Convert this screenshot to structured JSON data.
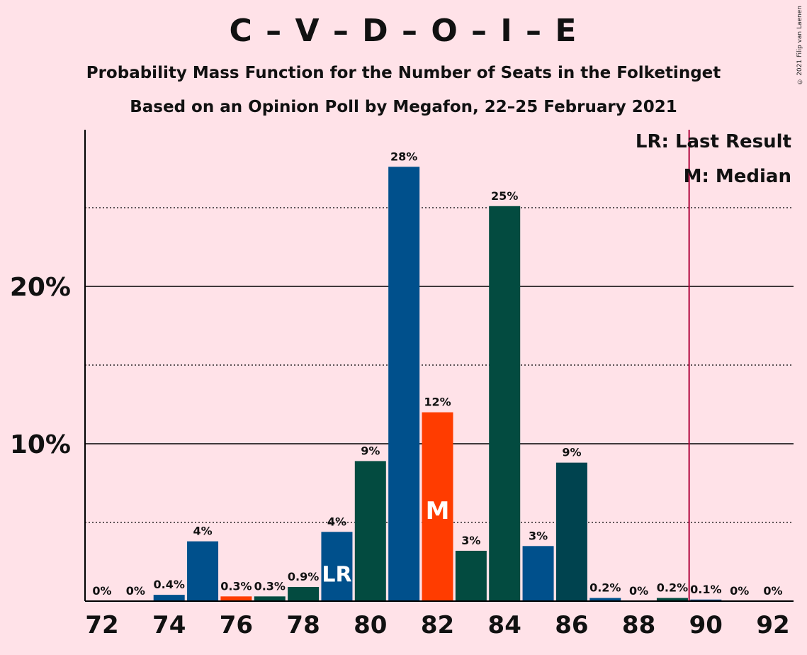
{
  "chart_data": {
    "type": "bar",
    "title": "C – V – D – O – I – E",
    "subtitles": [
      "Probability Mass Function for the Number of Seats in the Folketinget",
      "Based on an Opinion Poll by Megafon, 22–25 February 2021"
    ],
    "copyright": "© 2021 Filip van Laenen",
    "x": [
      72,
      73,
      74,
      75,
      76,
      77,
      78,
      79,
      80,
      81,
      82,
      83,
      84,
      85,
      86,
      87,
      88,
      89,
      90,
      91,
      92
    ],
    "values": [
      0,
      0,
      0.4,
      3.8,
      0.3,
      0.3,
      0.9,
      4.4,
      8.9,
      27.6,
      12.0,
      3.2,
      25.1,
      3.5,
      8.8,
      0.2,
      0,
      0.2,
      0.1,
      0,
      0
    ],
    "data_labels": [
      "0%",
      "0%",
      "0.4%",
      "4%",
      "0.3%",
      "0.3%",
      "0.9%",
      "4%",
      "9%",
      "28%",
      "12%",
      "3%",
      "25%",
      "3%",
      "9%",
      "0.2%",
      "0%",
      "0.2%",
      "0.1%",
      "0%",
      "0%"
    ],
    "bar_colors": [
      "#00508C",
      "#00508C",
      "#00508C",
      "#00508C",
      "#FF3C00",
      "#034B40",
      "#034B40",
      "#00508C",
      "#034B40",
      "#00508C",
      "#FF3C00",
      "#034B40",
      "#034B40",
      "#00508C",
      "#00434F",
      "#00508C",
      "#00508C",
      "#034B40",
      "#00508C",
      "#00508C",
      "#00508C"
    ],
    "x_tick_labels": [
      "72",
      "74",
      "76",
      "78",
      "80",
      "82",
      "84",
      "86",
      "88",
      "90",
      "92"
    ],
    "y_tick_labels": [
      "10%",
      "20%"
    ],
    "ylim": [
      0,
      30
    ],
    "last_result_seat": 79,
    "median_seat": 82,
    "lr_marker": "LR",
    "median_marker": "M",
    "legend": [
      "LR: Last Result",
      "M: Median"
    ],
    "majority_line_seat": 89.5,
    "legend_position": "top-right"
  }
}
